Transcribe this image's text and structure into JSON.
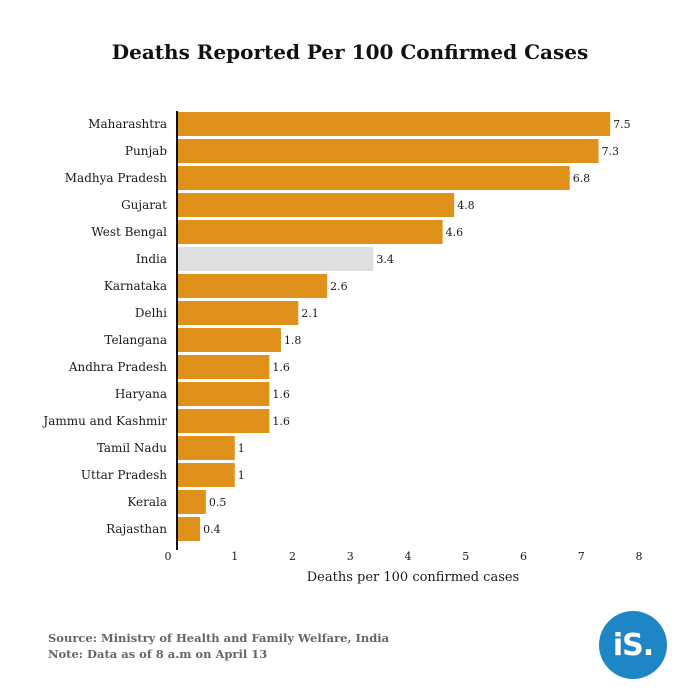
{
  "chart_data": {
    "type": "bar",
    "orientation": "horizontal",
    "title": "Deaths Reported Per 100 Confirmed Cases",
    "xlabel": "Deaths per 100 confirmed cases",
    "ylabel": "",
    "xlim": [
      0,
      8
    ],
    "xticks": [
      "0",
      "1",
      "2",
      "3",
      "4",
      "5",
      "6",
      "7",
      "8"
    ],
    "grid": false,
    "categories": [
      "Maharashtra",
      "Punjab",
      "Madhya Pradesh",
      "Gujarat",
      "West Bengal",
      "India",
      "Karnataka",
      "Delhi",
      "Telangana",
      "Andhra Pradesh",
      "Haryana",
      "Jammu and Kashmir",
      "Tamil Nadu",
      "Uttar Pradesh",
      "Kerala",
      "Rajasthan"
    ],
    "values": [
      7.5,
      7.3,
      6.8,
      4.8,
      4.6,
      3.4,
      2.6,
      2.1,
      1.8,
      1.6,
      1.6,
      1.6,
      1,
      1,
      0.5,
      0.4
    ],
    "value_labels": [
      "7.5",
      "7.3",
      "6.8",
      "4.8",
      "4.6",
      "3.4",
      "2.6",
      "2.1",
      "1.8",
      "1.6",
      "1.6",
      "1.6",
      "1",
      "1",
      "0.5",
      "0.4"
    ],
    "highlight_category": "India",
    "colors": {
      "bar": "#e0911c",
      "highlight": "#dde0df",
      "axis": "#111111"
    }
  },
  "footer": {
    "source": "Source: Ministry of Health and Family Welfare, India",
    "note": "Note: Data as of 8 a.m on April 13"
  },
  "logo": {
    "text": "iS."
  }
}
